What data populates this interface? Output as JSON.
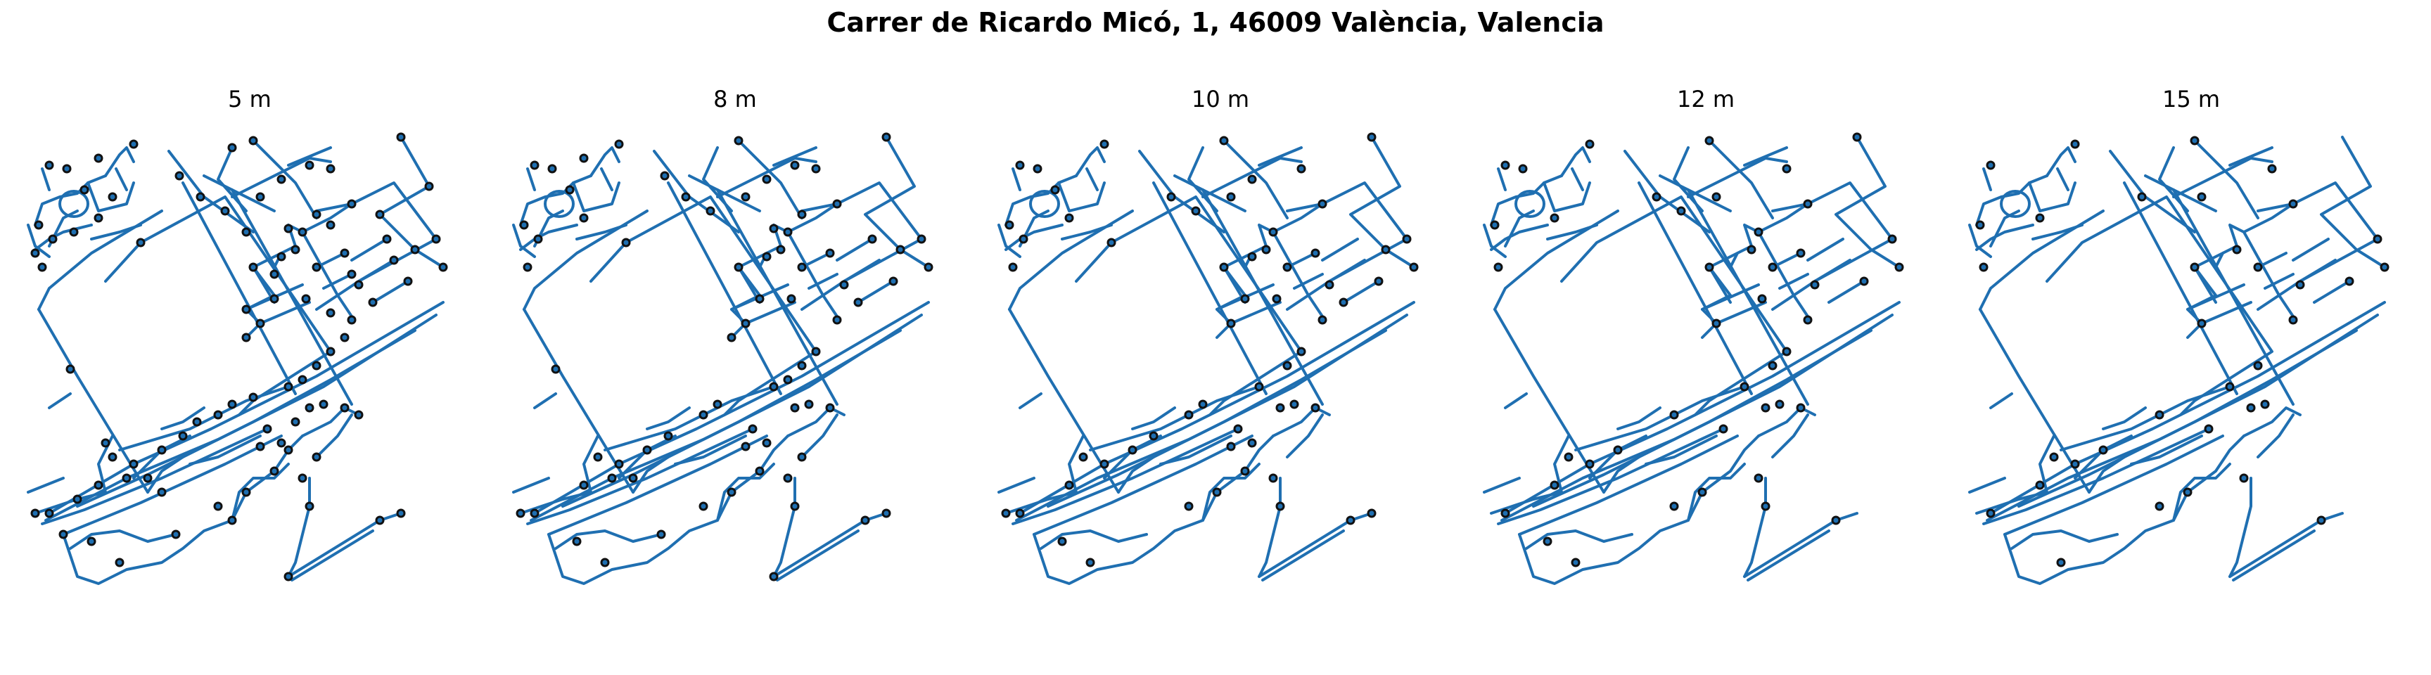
{
  "figure": {
    "title": "Carrer de Ricardo Micó, 1, 46009 València, Valencia",
    "edge_color": "#1f77b4",
    "node_edge_color": "#111111"
  },
  "panels": [
    {
      "label": "5 m"
    },
    {
      "label": "8 m"
    },
    {
      "label": "10 m"
    },
    {
      "label": "12 m"
    },
    {
      "label": "15 m"
    }
  ]
}
